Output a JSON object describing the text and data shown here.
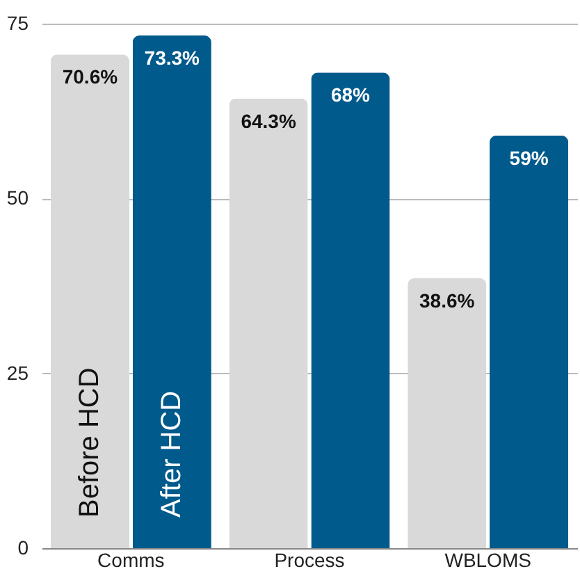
{
  "chart_data": {
    "type": "bar",
    "categories": [
      "Comms",
      "Process",
      "WBLOMS"
    ],
    "series": [
      {
        "name": "Before HCD",
        "color": "#d9d9d9",
        "values": [
          70.6,
          64.3,
          38.6
        ],
        "value_labels": [
          "70.6%",
          "64.3%",
          "38.6%"
        ]
      },
      {
        "name": "After HCD",
        "color": "#005a8c",
        "values": [
          73.3,
          68,
          59
        ],
        "value_labels": [
          "73.3%",
          "68%",
          "59%"
        ]
      }
    ],
    "ylim": [
      0,
      75
    ],
    "yticks": [
      0,
      25,
      50,
      75
    ],
    "grid": "y",
    "legend": false
  }
}
